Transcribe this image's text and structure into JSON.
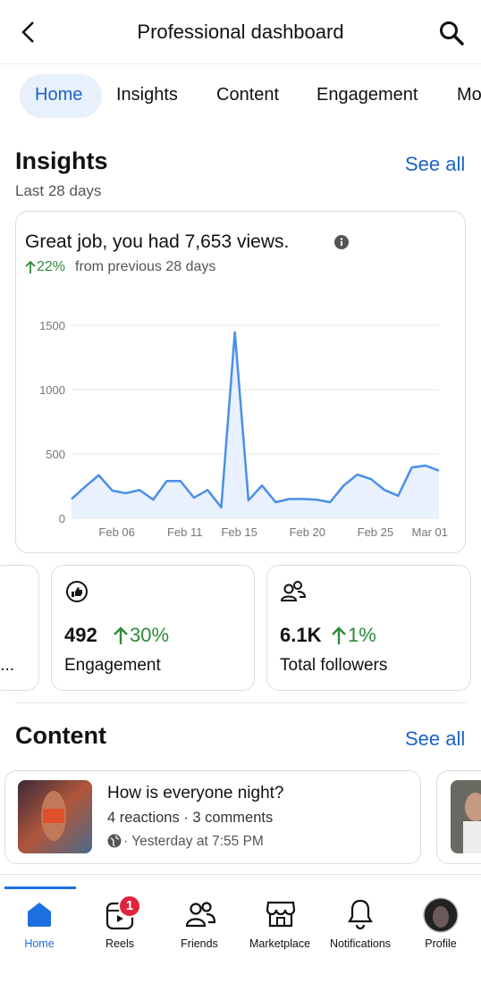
{
  "header": {
    "title": "Professional dashboard"
  },
  "tabs": [
    "Home",
    "Insights",
    "Content",
    "Engagement",
    "Mo"
  ],
  "insights": {
    "title": "Insights",
    "see_all": "See all",
    "period": "Last 28 days",
    "summary": "Great job, you had 7,653 views.",
    "change": "22%",
    "change_text": "from previous 28 days"
  },
  "chart_data": {
    "type": "line",
    "categories": [
      null,
      null,
      null,
      "Feb 06",
      null,
      null,
      null,
      null,
      "Feb 11",
      null,
      null,
      null,
      "Feb 15",
      null,
      null,
      null,
      null,
      "Feb 20",
      null,
      null,
      null,
      null,
      "Feb 25",
      null,
      null,
      null,
      "Mar 01",
      null
    ],
    "values": [
      150,
      245,
      335,
      215,
      195,
      220,
      145,
      290,
      290,
      160,
      220,
      85,
      1445,
      140,
      255,
      125,
      150,
      150,
      145,
      125,
      255,
      340,
      305,
      220,
      175,
      395,
      410,
      370
    ],
    "color": "#4a8fe7",
    "area": true,
    "ylim": [
      0,
      1500
    ],
    "yticks": [
      0,
      500,
      1000,
      1500
    ],
    "grid": true
  },
  "metrics": [
    {
      "label": "i..."
    },
    {
      "value": "492",
      "change": "30%",
      "label": "Engagement"
    },
    {
      "value": "6.1K",
      "change": "1%",
      "label": "Total followers"
    }
  ],
  "content": {
    "title": "Content",
    "see_all": "See all",
    "posts": [
      {
        "title": "How is everyone night?",
        "stats": "4 reactions · 3 comments",
        "time": "· Yesterday at 7:55 PM"
      }
    ]
  },
  "nav": [
    {
      "label": "Home"
    },
    {
      "label": "Reels",
      "badge": 1
    },
    {
      "label": "Friends"
    },
    {
      "label": "Marketplace"
    },
    {
      "label": "Notifications"
    },
    {
      "label": "Profile"
    }
  ]
}
